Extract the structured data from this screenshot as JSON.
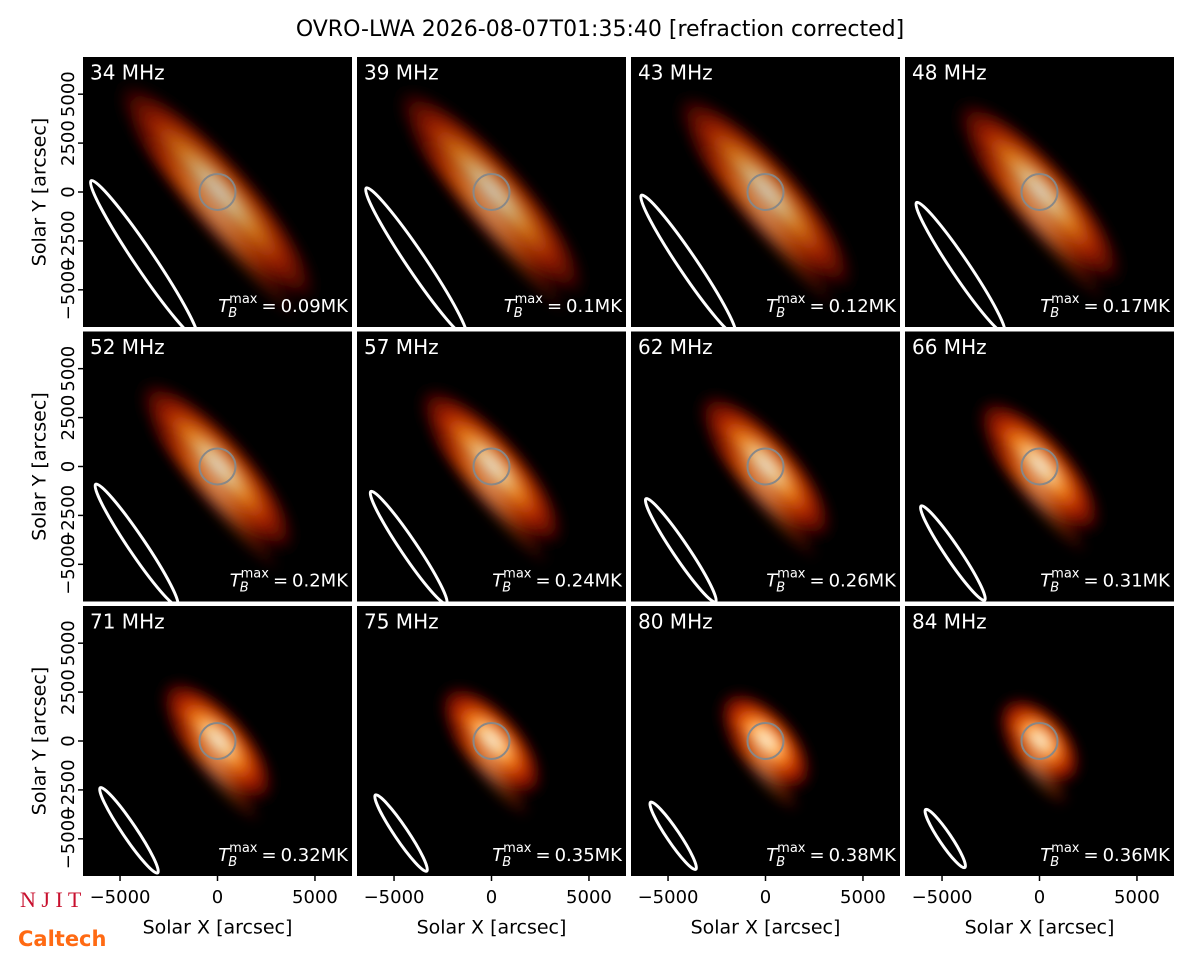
{
  "chart_data": {
    "type": "image_grid",
    "title": "OVRO-LWA 2026-08-07T01:35:40 [refraction corrected]",
    "categories": [
      "34 MHz",
      "39 MHz",
      "43 MHz",
      "48 MHz",
      "52 MHz",
      "57 MHz",
      "62 MHz",
      "66 MHz",
      "71 MHz",
      "75 MHz",
      "80 MHz",
      "84 MHz"
    ],
    "values": [
      0.09,
      0.1,
      0.12,
      0.17,
      0.2,
      0.24,
      0.26,
      0.31,
      0.32,
      0.35,
      0.38,
      0.36
    ],
    "value_labels": [
      "0.09MK",
      "0.1MK",
      "0.12MK",
      "0.17MK",
      "0.2MK",
      "0.24MK",
      "0.26MK",
      "0.31MK",
      "0.32MK",
      "0.35MK",
      "0.38MK",
      "0.36MK"
    ],
    "value_symbol": "T",
    "value_sub": "B",
    "value_sup": "max",
    "value_eq": "=",
    "x_label": "Solar X [arcsec]",
    "y_label": "Solar Y [arcsec]",
    "xlim": [
      -6900,
      6900
    ],
    "ylim": [
      -6900,
      6900
    ],
    "xticks": [
      {
        "value": -5000,
        "label": "−5000"
      },
      0,
      5000
    ],
    "yticks": [
      {
        "value": -5000,
        "label": "−5000"
      },
      {
        "value": -2500,
        "label": "−2500"
      },
      0,
      2500,
      5000
    ],
    "logos": [
      "N J I T",
      "Caltech"
    ]
  }
}
